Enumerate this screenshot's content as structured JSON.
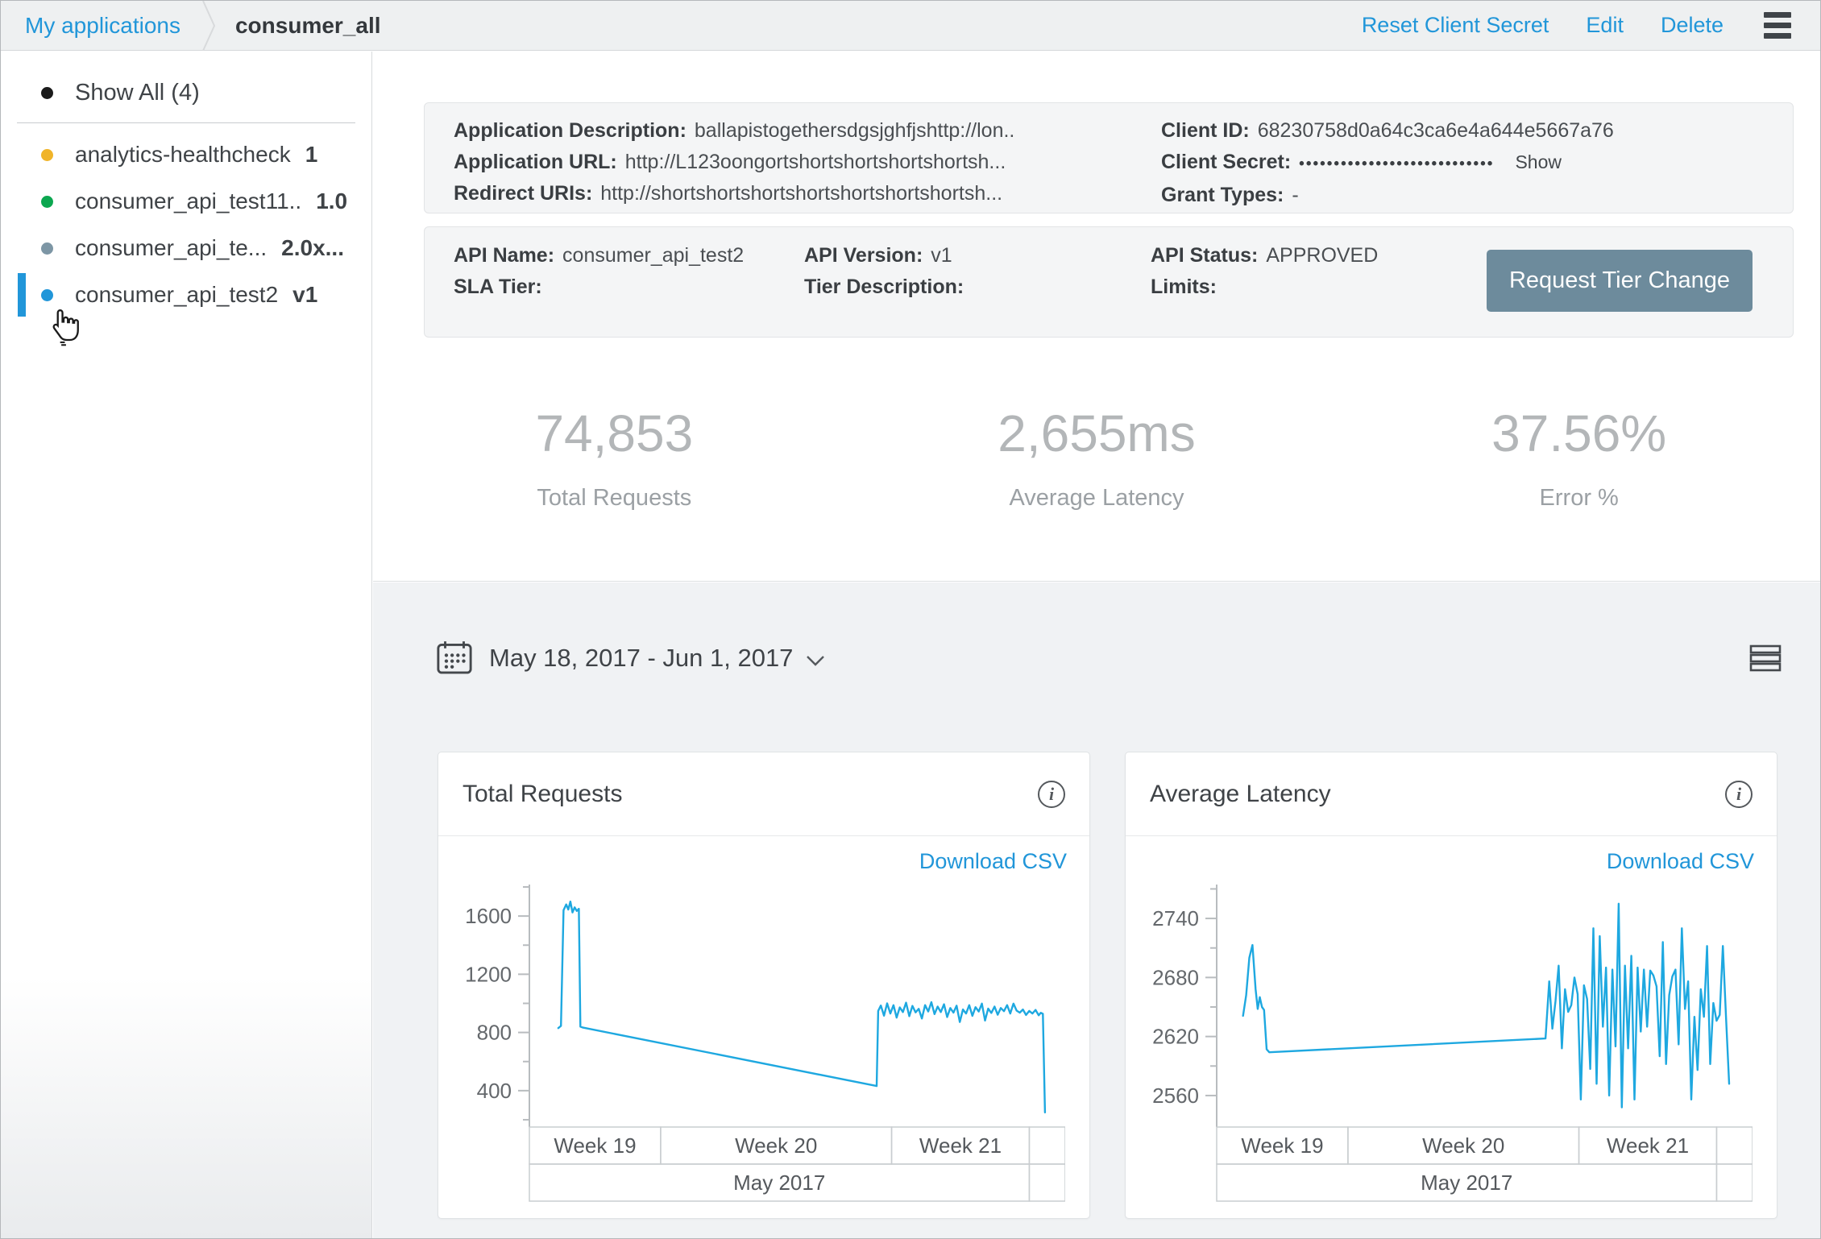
{
  "topbar": {
    "breadcrumb": "My applications",
    "title": "consumer_all",
    "actions": {
      "reset_secret": "Reset Client Secret",
      "edit": "Edit",
      "delete": "Delete"
    }
  },
  "icons": {
    "hamburger": "menu-lines",
    "info": "i",
    "chevron_down": "v",
    "calendar": "calendar-grid",
    "list_view": "stacked-lines",
    "cursor": "hand-pointer"
  },
  "sidebar": {
    "show_all": {
      "label": "Show All (4)",
      "dot_color": "#1b1b1b"
    },
    "items": [
      {
        "label": "analytics-healthcheck",
        "version": "1",
        "dot_color": "#f0b429",
        "selected": false
      },
      {
        "label": "consumer_api_test11..",
        "version": "1.0",
        "dot_color": "#0ca750",
        "selected": false
      },
      {
        "label": "consumer_api_te...",
        "version": "2.0x...",
        "dot_color": "#7d96a5",
        "selected": false
      },
      {
        "label": "consumer_api_test2",
        "version": "v1",
        "dot_color": "#2196d9",
        "selected": true
      }
    ]
  },
  "app_details": {
    "description_label": "Application Description:",
    "description": "ballapistogethersdgsjghfjshttp://lon..",
    "url_label": "Application URL:",
    "url": "http://L123oongortshortshortshortshortsh...",
    "redirect_label": "Redirect URIs:",
    "redirect": "http://shortshortshortshortshortshortshortsh...",
    "client_id_label": "Client ID:",
    "client_id": "68230758d0a64c3ca6e4a644e5667a76",
    "client_secret_label": "Client Secret:",
    "client_secret_masked": "••••••••••••••••••••••••••••",
    "client_secret_show": "Show",
    "grant_types_label": "Grant Types:",
    "grant_types": "-"
  },
  "api_details": {
    "api_name_label": "API Name:",
    "api_name": "consumer_api_test2",
    "api_version_label": "API Version:",
    "api_version": "v1",
    "api_status_label": "API Status:",
    "api_status": "APPROVED",
    "sla_tier_label": "SLA Tier:",
    "sla_tier": "",
    "tier_description_label": "Tier Description:",
    "tier_description": "",
    "limits_label": "Limits:",
    "limits": "",
    "request_tier_button": "Request Tier Change"
  },
  "metrics": [
    {
      "value": "74,853",
      "label": "Total Requests"
    },
    {
      "value": "2,655ms",
      "label": "Average Latency"
    },
    {
      "value": "37.56%",
      "label": "Error %"
    }
  ],
  "date_range": "May 18, 2017 - Jun 1, 2017",
  "chart_data": [
    {
      "type": "line",
      "title": "Total Requests",
      "download_label": "Download CSV",
      "line_color": "#1ea8e0",
      "grid": false,
      "legend": "none",
      "ylim": [
        150,
        1800
      ],
      "yticks": [
        400,
        800,
        1200,
        1600
      ],
      "yticks_minor": [
        200,
        600,
        1000,
        1400,
        1800
      ],
      "x_bands": [
        {
          "label": "Week 19",
          "from": 0,
          "to": 0.245
        },
        {
          "label": "Week 20",
          "from": 0.245,
          "to": 0.676
        },
        {
          "label": "Week 21",
          "from": 0.676,
          "to": 0.933
        },
        {
          "label": "",
          "from": 0.933,
          "to": 1.0
        }
      ],
      "month_bands": [
        {
          "label": "May 2017",
          "from": 0,
          "to": 0.933
        },
        {
          "label": "",
          "from": 0.933,
          "to": 1.0
        }
      ],
      "points": [
        [
          0.055,
          830
        ],
        [
          0.06,
          845
        ],
        [
          0.065,
          1640
        ],
        [
          0.07,
          1680
        ],
        [
          0.074,
          1645
        ],
        [
          0.078,
          1700
        ],
        [
          0.082,
          1625
        ],
        [
          0.086,
          1660
        ],
        [
          0.09,
          1635
        ],
        [
          0.094,
          1650
        ],
        [
          0.097,
          840
        ],
        [
          0.102,
          833
        ],
        [
          0.66,
          432
        ],
        [
          0.663,
          948
        ],
        [
          0.668,
          985
        ],
        [
          0.674,
          915
        ],
        [
          0.68,
          1000
        ],
        [
          0.686,
          930
        ],
        [
          0.692,
          988
        ],
        [
          0.698,
          902
        ],
        [
          0.704,
          972
        ],
        [
          0.71,
          940
        ],
        [
          0.716,
          1005
        ],
        [
          0.722,
          912
        ],
        [
          0.728,
          983
        ],
        [
          0.734,
          938
        ],
        [
          0.74,
          962
        ],
        [
          0.746,
          896
        ],
        [
          0.752,
          988
        ],
        [
          0.758,
          944
        ],
        [
          0.764,
          1008
        ],
        [
          0.77,
          926
        ],
        [
          0.776,
          978
        ],
        [
          0.782,
          940
        ],
        [
          0.788,
          994
        ],
        [
          0.794,
          906
        ],
        [
          0.8,
          968
        ],
        [
          0.806,
          936
        ],
        [
          0.812,
          984
        ],
        [
          0.818,
          872
        ],
        [
          0.824,
          958
        ],
        [
          0.83,
          930
        ],
        [
          0.836,
          988
        ],
        [
          0.842,
          914
        ],
        [
          0.848,
          974
        ],
        [
          0.854,
          944
        ],
        [
          0.86,
          998
        ],
        [
          0.866,
          882
        ],
        [
          0.872,
          964
        ],
        [
          0.878,
          934
        ],
        [
          0.884,
          978
        ],
        [
          0.89,
          922
        ],
        [
          0.896,
          968
        ],
        [
          0.902,
          946
        ],
        [
          0.908,
          988
        ],
        [
          0.914,
          930
        ],
        [
          0.92,
          998
        ],
        [
          0.926,
          950
        ],
        [
          0.932,
          936
        ],
        [
          0.938,
          958
        ],
        [
          0.944,
          920
        ],
        [
          0.95,
          948
        ],
        [
          0.956,
          930
        ],
        [
          0.962,
          955
        ],
        [
          0.968,
          918
        ],
        [
          0.972,
          935
        ],
        [
          0.976,
          928
        ],
        [
          0.98,
          250
        ]
      ]
    },
    {
      "type": "line",
      "title": "Average Latency",
      "download_label": "Download CSV",
      "line_color": "#1ea8e0",
      "grid": false,
      "legend": "none",
      "ylim": [
        2528,
        2772
      ],
      "yticks": [
        2560,
        2620,
        2680,
        2740
      ],
      "yticks_minor": [
        2590,
        2650,
        2710,
        2770
      ],
      "x_bands": [
        {
          "label": "Week 19",
          "from": 0,
          "to": 0.245
        },
        {
          "label": "Week 20",
          "from": 0.245,
          "to": 0.676
        },
        {
          "label": "Week 21",
          "from": 0.676,
          "to": 0.933
        },
        {
          "label": "",
          "from": 0.933,
          "to": 1.0
        }
      ],
      "month_bands": [
        {
          "label": "May 2017",
          "from": 0,
          "to": 0.933
        },
        {
          "label": "",
          "from": 0.933,
          "to": 1.0
        }
      ],
      "points": [
        [
          0.05,
          2641
        ],
        [
          0.056,
          2662
        ],
        [
          0.062,
          2700
        ],
        [
          0.068,
          2713
        ],
        [
          0.074,
          2668
        ],
        [
          0.078,
          2648
        ],
        [
          0.082,
          2660
        ],
        [
          0.086,
          2650
        ],
        [
          0.09,
          2647
        ],
        [
          0.095,
          2607
        ],
        [
          0.1,
          2604
        ],
        [
          0.625,
          2618
        ],
        [
          0.632,
          2676
        ],
        [
          0.638,
          2628
        ],
        [
          0.644,
          2656
        ],
        [
          0.65,
          2692
        ],
        [
          0.656,
          2608
        ],
        [
          0.662,
          2668
        ],
        [
          0.668,
          2645
        ],
        [
          0.674,
          2652
        ],
        [
          0.68,
          2680
        ],
        [
          0.686,
          2663
        ],
        [
          0.692,
          2556
        ],
        [
          0.698,
          2672
        ],
        [
          0.704,
          2658
        ],
        [
          0.71,
          2587
        ],
        [
          0.716,
          2730
        ],
        [
          0.722,
          2572
        ],
        [
          0.728,
          2722
        ],
        [
          0.734,
          2630
        ],
        [
          0.74,
          2690
        ],
        [
          0.746,
          2560
        ],
        [
          0.752,
          2688
        ],
        [
          0.758,
          2610
        ],
        [
          0.764,
          2755
        ],
        [
          0.77,
          2548
        ],
        [
          0.776,
          2692
        ],
        [
          0.782,
          2608
        ],
        [
          0.788,
          2702
        ],
        [
          0.794,
          2556
        ],
        [
          0.8,
          2690
        ],
        [
          0.806,
          2625
        ],
        [
          0.812,
          2688
        ],
        [
          0.818,
          2630
        ],
        [
          0.824,
          2687
        ],
        [
          0.83,
          2682
        ],
        [
          0.836,
          2671
        ],
        [
          0.842,
          2600
        ],
        [
          0.848,
          2716
        ],
        [
          0.854,
          2592
        ],
        [
          0.86,
          2662
        ],
        [
          0.866,
          2681
        ],
        [
          0.872,
          2688
        ],
        [
          0.878,
          2612
        ],
        [
          0.884,
          2730
        ],
        [
          0.89,
          2648
        ],
        [
          0.896,
          2676
        ],
        [
          0.902,
          2556
        ],
        [
          0.908,
          2640
        ],
        [
          0.914,
          2586
        ],
        [
          0.92,
          2668
        ],
        [
          0.926,
          2640
        ],
        [
          0.932,
          2712
        ],
        [
          0.938,
          2592
        ],
        [
          0.944,
          2654
        ],
        [
          0.95,
          2636
        ],
        [
          0.956,
          2642
        ],
        [
          0.962,
          2712
        ],
        [
          0.968,
          2640
        ],
        [
          0.974,
          2572
        ]
      ]
    }
  ]
}
